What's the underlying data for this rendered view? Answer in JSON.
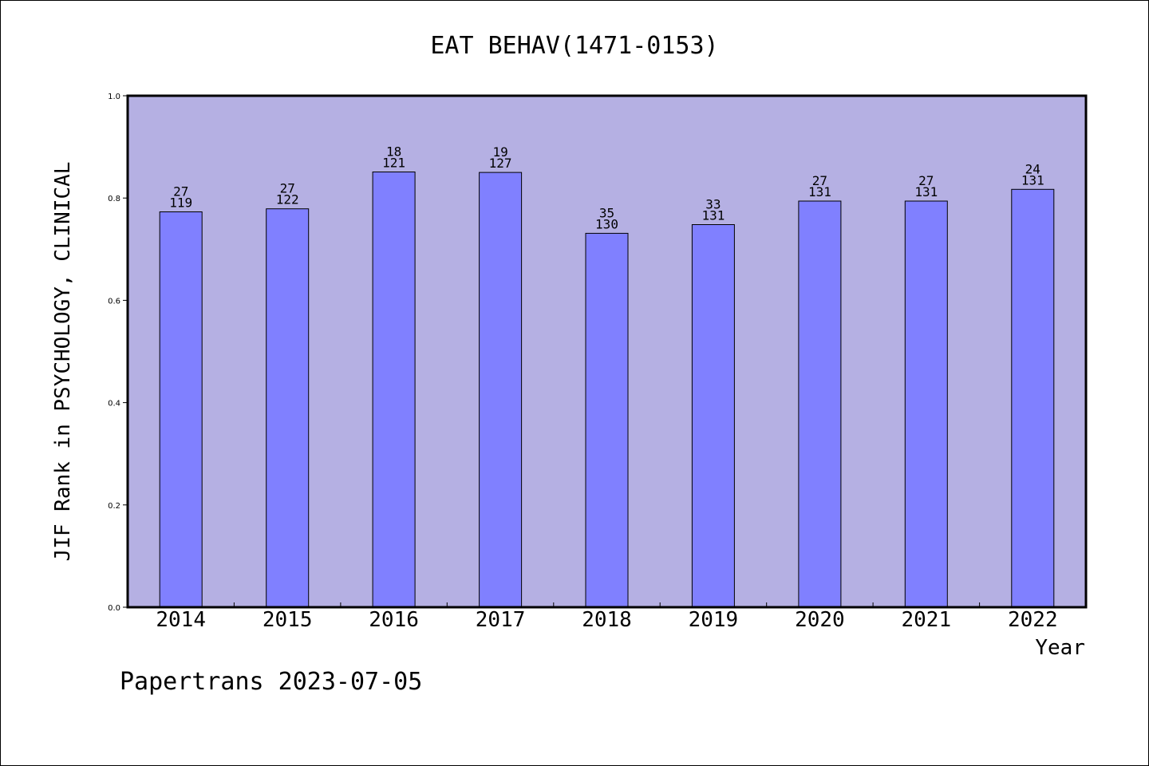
{
  "chart_data": {
    "type": "bar",
    "title": "EAT BEHAV(1471-0153)",
    "xlabel": "Year",
    "ylabel": "JIF Rank in PSYCHOLOGY, CLINICAL",
    "ylim": [
      0.0,
      1.0
    ],
    "yticks": [
      "0.0",
      "0.2",
      "0.4",
      "0.6",
      "0.8",
      "1.0"
    ],
    "categories": [
      "2014",
      "2015",
      "2016",
      "2017",
      "2018",
      "2019",
      "2020",
      "2021",
      "2022"
    ],
    "values": [
      0.773,
      0.779,
      0.851,
      0.85,
      0.731,
      0.748,
      0.794,
      0.794,
      0.817
    ],
    "ranks": [
      "27",
      "27",
      "18",
      "19",
      "35",
      "33",
      "27",
      "27",
      "24"
    ],
    "totals": [
      "119",
      "122",
      "121",
      "127",
      "130",
      "131",
      "131",
      "131",
      "131"
    ],
    "grid": false,
    "colors": {
      "plot_background": "#b5b0e3",
      "bar_fill": "#8080ff",
      "bar_stroke": "#000000"
    }
  },
  "footer": {
    "credit": "Papertrans 2023-07-05"
  }
}
